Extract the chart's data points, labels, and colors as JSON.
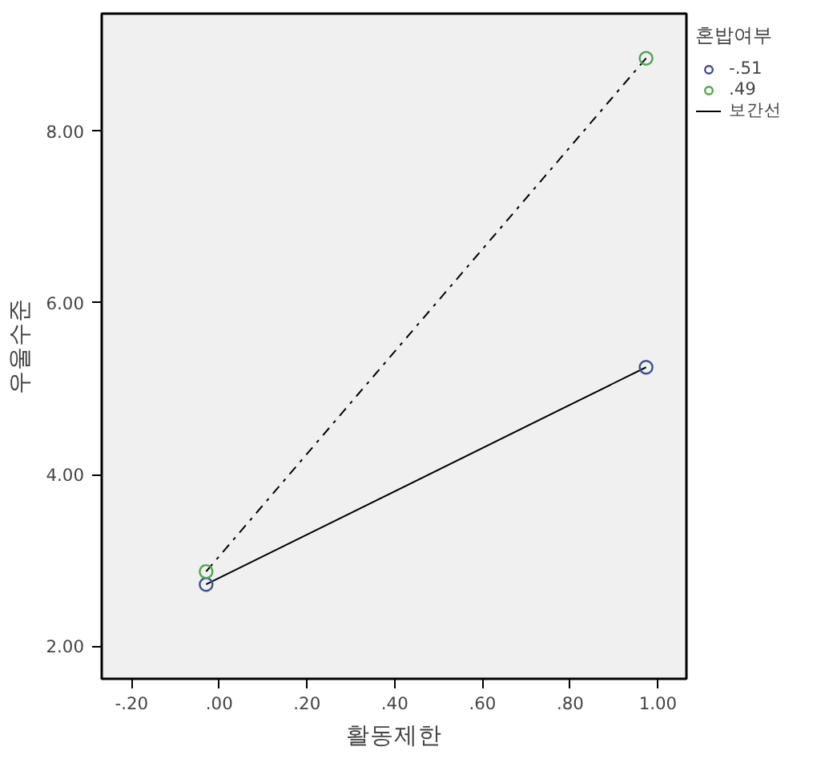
{
  "chart_data": {
    "type": "line",
    "xlabel": "활동제한",
    "ylabel": "우울수준",
    "legend_title": "혼밥여부",
    "legend": "top right",
    "marker": "circle",
    "grid": false,
    "xlim": [
      -0.268,
      1.065
    ],
    "ylim": [
      1.62,
      9.37
    ],
    "xticks": [
      {
        "value": -0.2,
        "label": "-.20"
      },
      {
        "value": 0,
        "label": ".00"
      },
      {
        "value": 0.2,
        "label": ".20"
      },
      {
        "value": 0.4,
        "label": ".40"
      },
      {
        "value": 0.6,
        "label": ".60"
      },
      {
        "value": 0.8,
        "label": ".80"
      },
      {
        "value": 1,
        "label": "1.00"
      }
    ],
    "yticks": [
      {
        "value": 2,
        "label": "2.00"
      },
      {
        "value": 4,
        "label": "4.00"
      },
      {
        "value": 6,
        "label": "6.00"
      },
      {
        "value": 8,
        "label": "8.00"
      }
    ],
    "x": [
      -0.03,
      0.973
    ],
    "series": [
      {
        "name": "-.51",
        "color": "#3d4f96",
        "values": [
          2.72,
          5.25
        ],
        "line_style": "solid"
      },
      {
        "name": ".49",
        "color": "#4aa84a",
        "values": [
          2.87,
          8.85
        ],
        "line_style": "dashdot"
      }
    ],
    "annotations": [
      "보간선"
    ]
  }
}
